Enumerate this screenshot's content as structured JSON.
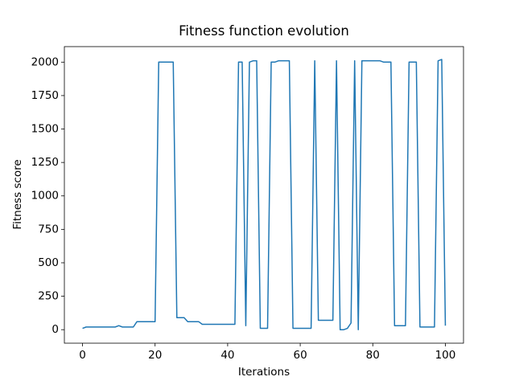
{
  "chart_data": {
    "type": "line",
    "title": "Fitness function evolution",
    "xlabel": "Iterations",
    "ylabel": "Fitness score",
    "x": [
      0,
      1,
      2,
      3,
      4,
      5,
      6,
      7,
      8,
      9,
      10,
      11,
      12,
      13,
      14,
      15,
      16,
      17,
      18,
      19,
      20,
      21,
      22,
      23,
      24,
      25,
      26,
      27,
      28,
      29,
      30,
      31,
      32,
      33,
      34,
      35,
      36,
      37,
      38,
      39,
      40,
      41,
      42,
      43,
      44,
      45,
      46,
      47,
      48,
      49,
      50,
      51,
      52,
      53,
      54,
      55,
      56,
      57,
      58,
      59,
      60,
      61,
      62,
      63,
      64,
      65,
      66,
      67,
      68,
      69,
      70,
      71,
      72,
      73,
      74,
      75,
      76,
      77,
      78,
      79,
      80,
      81,
      82,
      83,
      84,
      85,
      86,
      87,
      88,
      89,
      90,
      91,
      92,
      93,
      94,
      95,
      96,
      97,
      98,
      99,
      100
    ],
    "series": [
      {
        "color": "#1f77b4",
        "values": [
          10,
          20,
          20,
          20,
          20,
          20,
          20,
          20,
          20,
          20,
          30,
          20,
          20,
          20,
          20,
          60,
          60,
          60,
          60,
          60,
          60,
          2000,
          2000,
          2000,
          2000,
          2000,
          90,
          90,
          90,
          60,
          60,
          60,
          60,
          40,
          40,
          40,
          40,
          40,
          40,
          40,
          40,
          40,
          40,
          2000,
          2000,
          30,
          2000,
          2010,
          2010,
          10,
          10,
          10,
          2000,
          2000,
          2010,
          2010,
          2010,
          2010,
          10,
          10,
          10,
          10,
          10,
          10,
          2010,
          70,
          70,
          70,
          70,
          70,
          2010,
          0,
          0,
          10,
          50,
          2010,
          0,
          2010,
          2010,
          2010,
          2010,
          2010,
          2010,
          2000,
          2000,
          2000,
          30,
          30,
          30,
          30,
          2000,
          2000,
          2000,
          20,
          20,
          20,
          20,
          20,
          2010,
          2020,
          30
        ]
      }
    ],
    "xlim": [
      -5,
      105
    ],
    "ylim": [
      -101,
      2116
    ],
    "xticks": [
      0,
      20,
      40,
      60,
      80,
      100
    ],
    "yticks": [
      0,
      250,
      500,
      750,
      1000,
      1250,
      1500,
      1750,
      2000
    ]
  }
}
